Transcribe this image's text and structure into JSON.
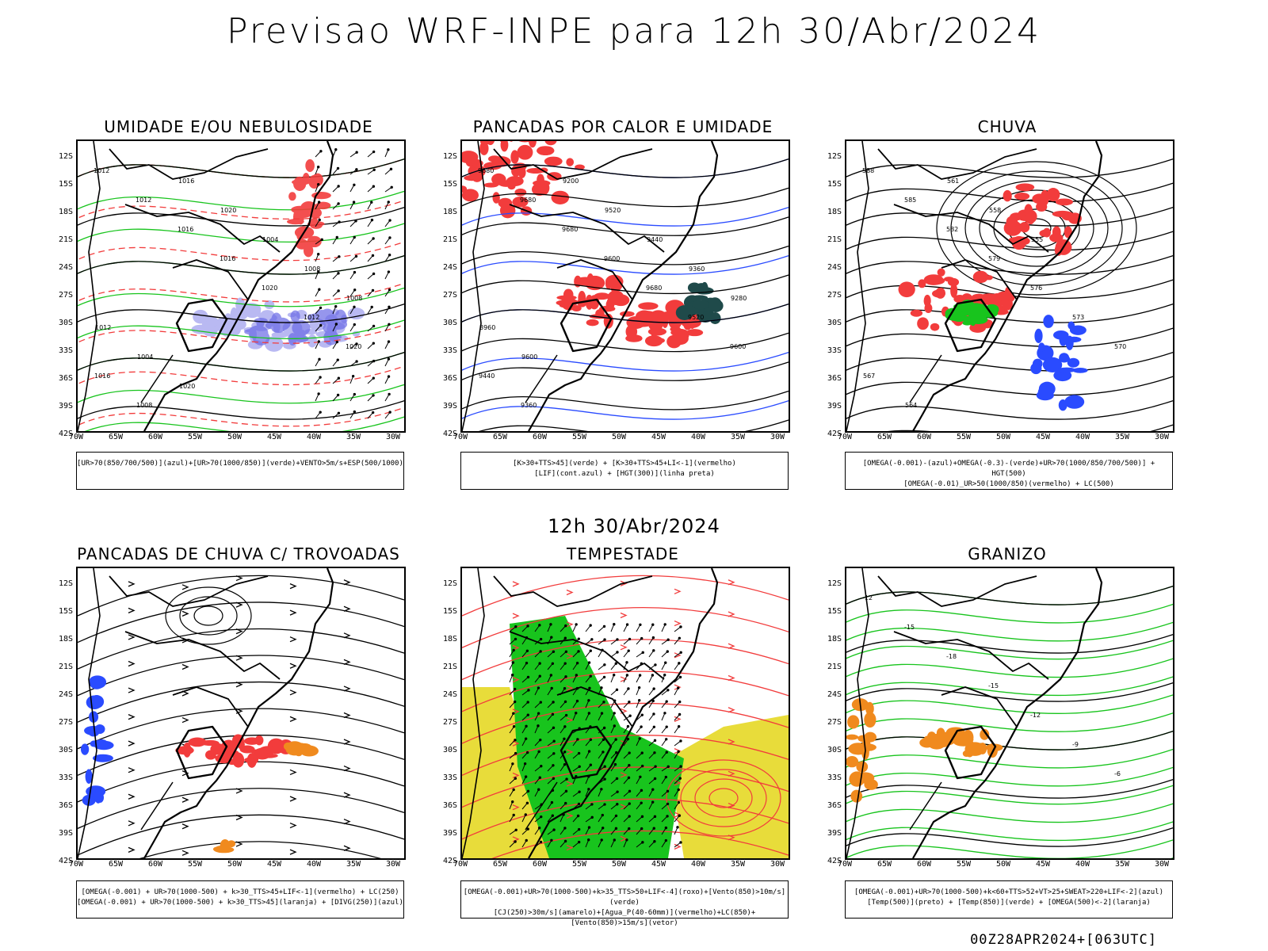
{
  "title": "Previsao WRF-INPE  para 12h 30/Abr/2024",
  "subtitle": "12h 30/Abr/2024",
  "footer": "00Z28APR2024+[063UTC]",
  "lat_labels": [
    "12S",
    "15S",
    "18S",
    "21S",
    "24S",
    "27S",
    "30S",
    "33S",
    "36S",
    "39S",
    "42S"
  ],
  "lon_labels": [
    "70W",
    "65W",
    "60W",
    "55W",
    "50W",
    "45W",
    "40W",
    "35W",
    "30W"
  ],
  "panels": [
    {
      "title": "UMIDADE E/OU NEBULOSIDADE",
      "legend_1": "[UR>70(850/700/500)](azul)+[UR>70(1000/850)](verde)+VENTO>5m/s+ESP(500/1000)",
      "legend_2": ""
    },
    {
      "title": "PANCADAS POR CALOR E UMIDADE",
      "legend_1": "[K>30+TTS>45](verde) + [K>30+TTS>45+LI<-1](vermelho)",
      "legend_2": "[LIF](cont.azul) + [HGT(300)](linha preta)"
    },
    {
      "title": "CHUVA",
      "legend_1": "[OMEGA(-0.001)-(azul)+OMEGA(-0.3)-(verde)+UR>70(1000/850/700/500)] + HGT(500)",
      "legend_2": "[OMEGA(-0.01)_UR>50(1000/850)(vermelho) + LC(500)"
    },
    {
      "title": "PANCADAS DE CHUVA C/ TROVOADAS",
      "legend_1": "[OMEGA(-0.001) + UR>70(1000-500) + k>30_TTS>45+LIF<-1](vermelho) + LC(250)",
      "legend_2": "[OMEGA(-0.001) + UR>70(1000-500) + k>30_TTS>45](laranja) + [DIVG(250)](azul)"
    },
    {
      "title": "TEMPESTADE",
      "legend_1": "[OMEGA(-0.001)+UR>70(1000-500)+k>35_TTS>50+LIF<-4](roxo)+[Vento(850)>10m/s](verde)",
      "legend_2": "[CJ(250)>30m/s](amarelo)+[Agua_P(40-60mm)](vermelho)+LC(850)+[Vento(850)>15m/s](vetor)"
    },
    {
      "title": "GRANIZO",
      "legend_1": "[OMEGA(-0.001)+UR>70(1000-500)+k<60+TTS>52+VT>25+SWEAT>220+LIF<-2](azul)",
      "legend_2": "[Temp(500)](preto) + [Temp(850)](verde) + [OMEGA(500)<-2](laranja)"
    }
  ],
  "contour_labels": {
    "p1": [
      "1012",
      "1012",
      "1016",
      "1016",
      "1020",
      "1012",
      "1020",
      "1016",
      "1008",
      "1016",
      "1020",
      "1004",
      "1008",
      "1008",
      "1012",
      "1004",
      "1020"
    ],
    "p2": [
      "9680",
      "9680",
      "9680",
      "9600",
      "9680",
      "9520",
      "9600",
      "9440",
      "9360",
      "9200",
      "9520",
      "9440",
      "9360",
      "9280",
      "8960",
      "9600"
    ],
    "p3": [
      "588",
      "585",
      "582",
      "579",
      "576",
      "573",
      "570",
      "567",
      "564",
      "561",
      "558",
      "555"
    ],
    "p6": [
      "-12",
      "-15",
      "-18",
      "-15",
      "-12",
      "-9",
      "-6"
    ]
  },
  "colors": {
    "red": "#f23c3c",
    "blue": "#2a4bff",
    "green": "#18c41d",
    "darkgreen": "#11a817",
    "lavender": "#a8a8f0",
    "teal": "#1f4a4a",
    "yellow": "#e8dc3a",
    "orange": "#f08a1e"
  }
}
